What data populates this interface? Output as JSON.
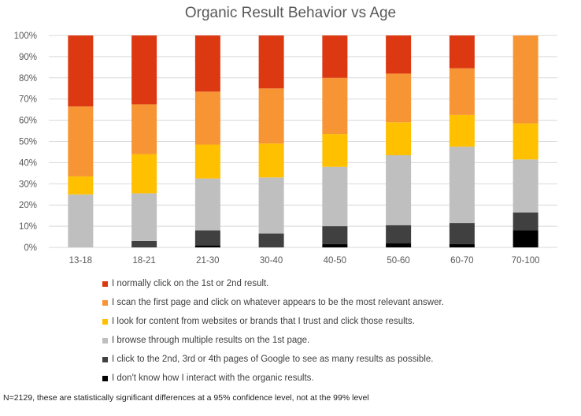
{
  "chart_data": {
    "type": "bar",
    "stacked": true,
    "title": "Organic Result Behavior vs Age",
    "categories": [
      "13-18",
      "18-21",
      "21-30",
      "30-40",
      "40-50",
      "50-60",
      "60-70",
      "70-100"
    ],
    "ylim": [
      0,
      100
    ],
    "yticks": [
      "0%",
      "10%",
      "20%",
      "30%",
      "40%",
      "50%",
      "60%",
      "70%",
      "80%",
      "90%",
      "100%"
    ],
    "grid": true,
    "legend_position": "bottom",
    "series": [
      {
        "name": "I don't know how I interact with the organic results.",
        "color": "#000000",
        "values": [
          0,
          0,
          1,
          0,
          1.5,
          2,
          1.5,
          8
        ]
      },
      {
        "name": "I click to the 2nd, 3rd or 4th pages of Google to see as many results as possible.",
        "color": "#404040",
        "values": [
          0,
          3,
          7,
          6.5,
          8.5,
          8.5,
          10,
          8.5
        ]
      },
      {
        "name": "I browse through multiple results on the 1st page.",
        "color": "#bfbfbf",
        "values": [
          25,
          22.5,
          24.5,
          26.5,
          28,
          33,
          36,
          25
        ]
      },
      {
        "name": "I look for content from websites or brands that I trust and click those results.",
        "color": "#ffc000",
        "values": [
          8.5,
          18.5,
          16,
          16,
          15.5,
          15.5,
          15,
          17
        ]
      },
      {
        "name": "I scan the first page and click on whatever appears to be the most relevant answer.",
        "color": "#f79433",
        "values": [
          33,
          23.5,
          25,
          26,
          26.5,
          23,
          22,
          41.5
        ]
      },
      {
        "name": "I normally click on the 1st or 2nd result.",
        "color": "#dc3912",
        "values": [
          33.5,
          32.5,
          26.5,
          25,
          20,
          18,
          15.5,
          0
        ]
      }
    ]
  },
  "footnote": "N=2129, these are statistically significant differences at a 95% confidence level, not at the 99% level"
}
